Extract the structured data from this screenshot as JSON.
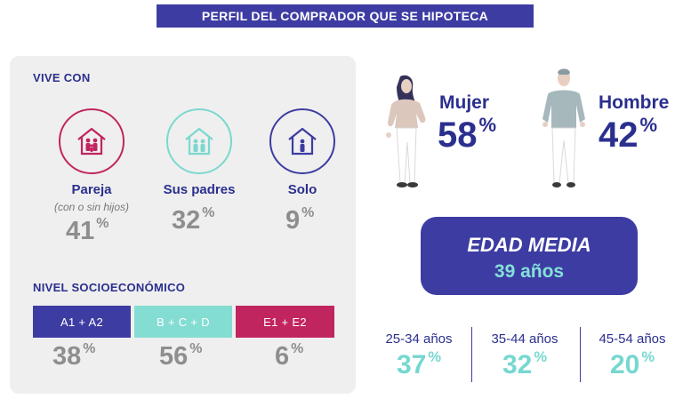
{
  "header": {
    "title": "PERFIL DEL COMPRADOR QUE SE HIPOTECA"
  },
  "vive_con": {
    "title": "VIVE CON",
    "items": [
      {
        "label": "Pareja",
        "sublabel": "(con o sin hijos)",
        "value": "41",
        "unit": "%",
        "icon": "house-family-icon",
        "color": "#c1255f"
      },
      {
        "label": "Sus padres",
        "sublabel": "",
        "value": "32",
        "unit": "%",
        "icon": "house-parents-icon",
        "color": "#7bd8cf"
      },
      {
        "label": "Solo",
        "sublabel": "",
        "value": "9",
        "unit": "%",
        "icon": "house-single-icon",
        "color": "#3d3ca3"
      }
    ]
  },
  "nivel": {
    "title": "NIVEL SOCIOECONÓMICO",
    "items": [
      {
        "label": "A1 + A2",
        "value": "38",
        "unit": "%",
        "color": "#3d3ca3"
      },
      {
        "label": "B + C + D",
        "value": "56",
        "unit": "%",
        "color": "#84ddd3"
      },
      {
        "label": "E1 + E2",
        "value": "6",
        "unit": "%",
        "color": "#c1255f"
      }
    ]
  },
  "gender": [
    {
      "label": "Mujer",
      "value": "58",
      "unit": "%",
      "icon": "woman-figure-icon"
    },
    {
      "label": "Hombre",
      "value": "42",
      "unit": "%",
      "icon": "man-figure-icon"
    }
  ],
  "edad": {
    "title": "EDAD MEDIA",
    "value": "39 años"
  },
  "age_groups": [
    {
      "label": "25-34 años",
      "value": "37",
      "unit": "%"
    },
    {
      "label": "35-44 años",
      "value": "32",
      "unit": "%"
    },
    {
      "label": "45-54 años",
      "value": "20",
      "unit": "%"
    }
  ],
  "colors": {
    "navy": "#3d3ca3",
    "teal": "#7bd8cf",
    "magenta": "#c1255f",
    "grey": "#8e8e8e"
  }
}
